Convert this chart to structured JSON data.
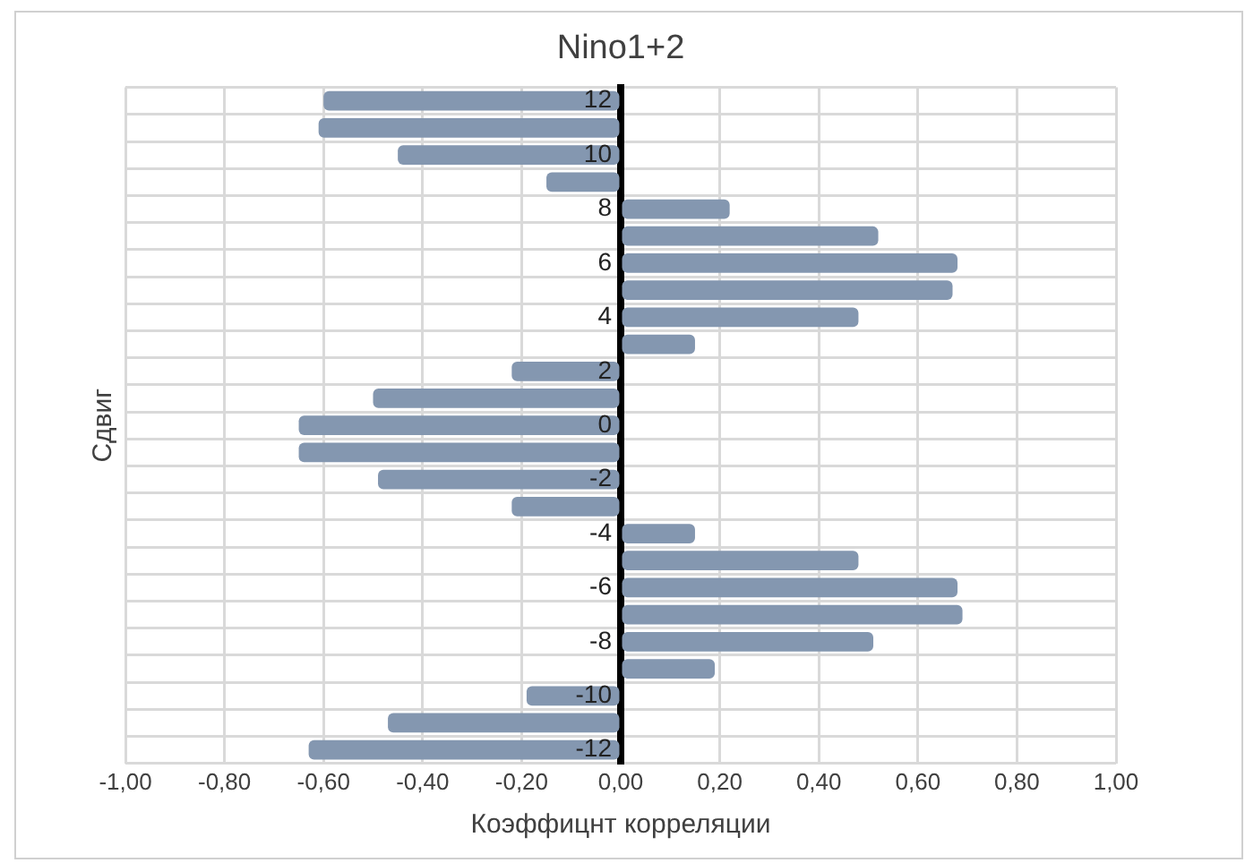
{
  "chart_data": {
    "type": "bar",
    "orientation": "horizontal",
    "title": "Nino1+2",
    "xlabel": "Коэффицнт корреляции",
    "ylabel": "Сдвиг",
    "categories": [
      "12",
      null,
      "10",
      null,
      "8",
      null,
      "6",
      null,
      "4",
      null,
      "2",
      null,
      "0",
      null,
      "-2",
      null,
      "-4",
      null,
      "-6",
      null,
      "-8",
      null,
      "-10",
      null,
      "-12"
    ],
    "values": [
      -0.6,
      -0.61,
      -0.45,
      -0.15,
      0.22,
      0.52,
      0.68,
      0.67,
      0.48,
      0.15,
      -0.22,
      -0.5,
      -0.65,
      -0.65,
      -0.49,
      -0.22,
      0.15,
      0.48,
      0.68,
      0.69,
      0.51,
      0.19,
      -0.19,
      -0.47,
      -0.63
    ],
    "color": "#8497b0",
    "xlim": [
      -1,
      1
    ],
    "xticks": [
      {
        "value": -1,
        "label": "-1,00"
      },
      {
        "value": -0.8,
        "label": "-0,80"
      },
      {
        "value": -0.6,
        "label": "-0,60"
      },
      {
        "value": -0.4,
        "label": "-0,40"
      },
      {
        "value": -0.2,
        "label": "-0,20"
      },
      {
        "value": 0,
        "label": "0,00"
      },
      {
        "value": 0.2,
        "label": "0,20"
      },
      {
        "value": 0.4,
        "label": "0,40"
      },
      {
        "value": 0.6,
        "label": "0,60"
      },
      {
        "value": 0.8,
        "label": "0,80"
      },
      {
        "value": 1,
        "label": "1,00"
      }
    ],
    "grid": true,
    "legend": false
  }
}
